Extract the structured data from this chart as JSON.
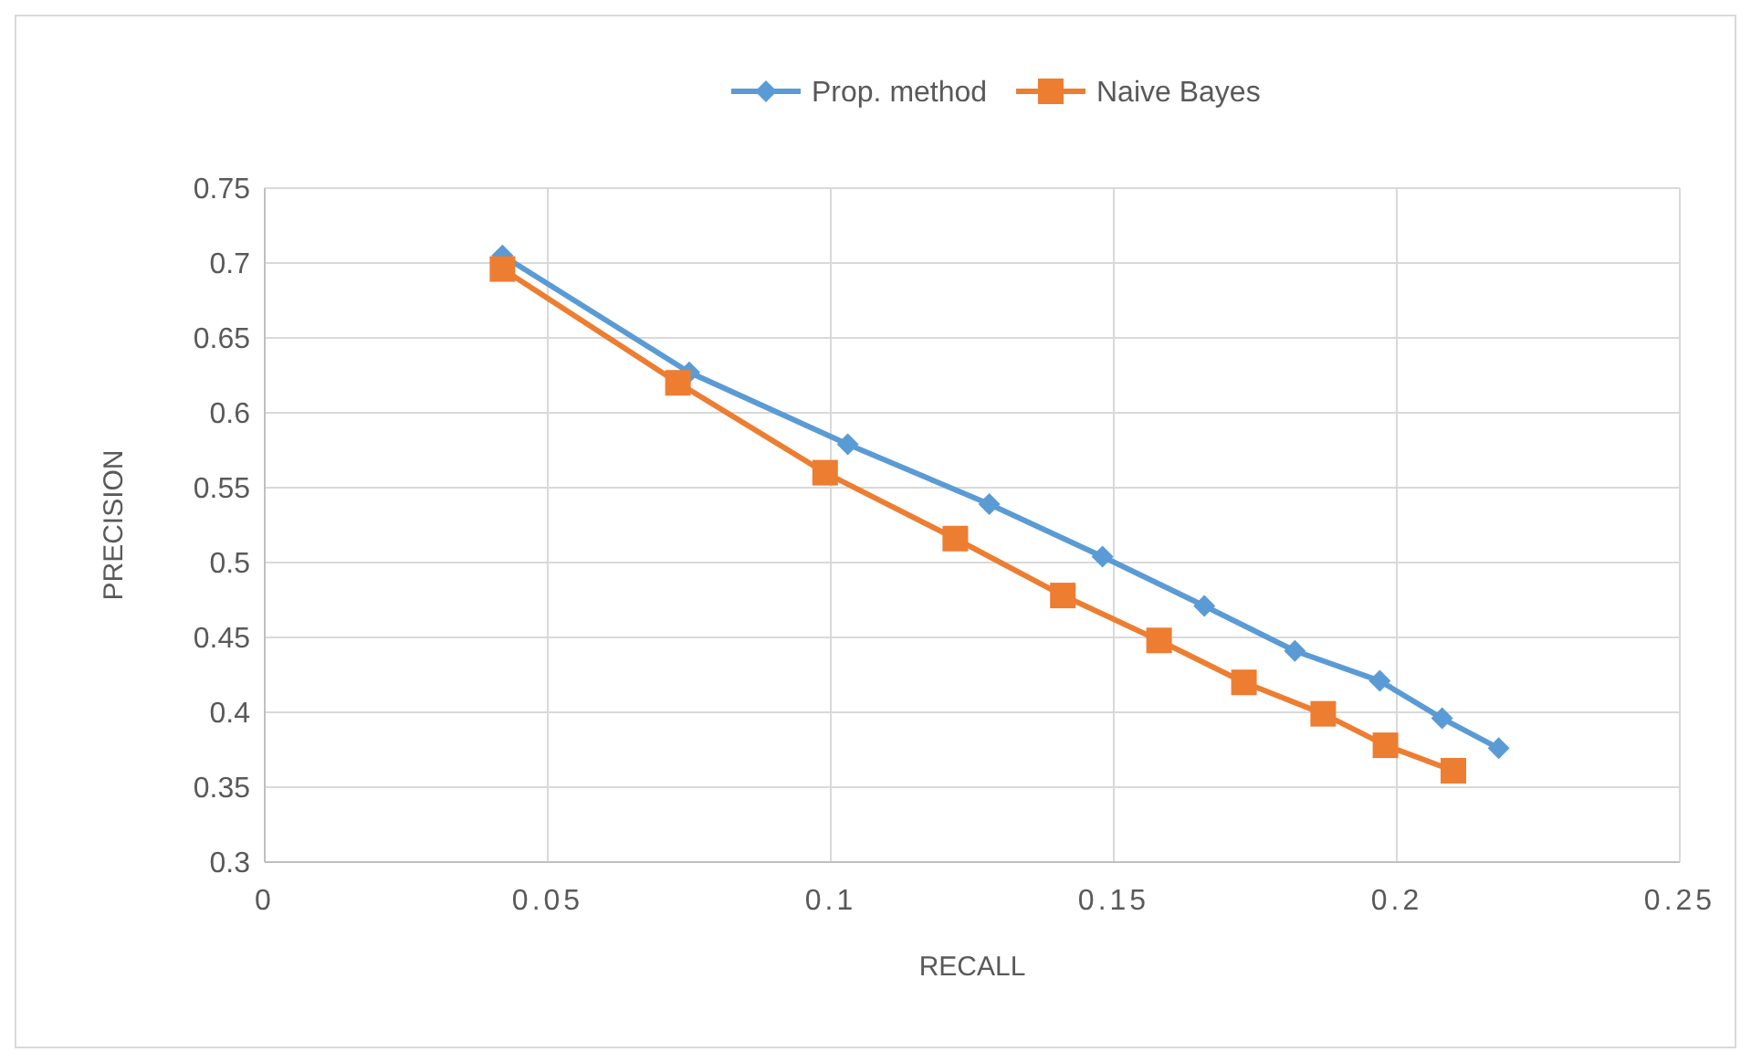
{
  "chart_data": {
    "type": "line",
    "xlabel": "RECALL",
    "ylabel": "PRECISION",
    "xlim": [
      0,
      0.25
    ],
    "xticks": [
      0,
      {
        "value": 0.05,
        "label": "0.05"
      },
      {
        "value": 0.1,
        "label": "0.1"
      },
      {
        "value": 0.15,
        "label": "0.15"
      },
      {
        "value": 0.2,
        "label": "0.2"
      },
      {
        "value": 0.25,
        "label": "0.25"
      }
    ],
    "ylim": [
      0.3,
      0.75
    ],
    "yticks": [
      0.3,
      0.35,
      0.4,
      0.45,
      0.5,
      0.55,
      0.6,
      0.65,
      0.7,
      0.75
    ],
    "grid": true,
    "legend": "top",
    "line_style": "solid",
    "series": [
      {
        "name": "Prop. method",
        "color": "#5b9bd5",
        "marker": "diamond",
        "x": [
          0.042,
          0.075,
          0.103,
          0.128,
          0.148,
          0.166,
          0.182,
          0.197,
          0.208,
          0.218
        ],
        "values": [
          0.705,
          0.627,
          0.579,
          0.539,
          0.504,
          0.471,
          0.441,
          0.421,
          0.396,
          0.376
        ]
      },
      {
        "name": "Naive Bayes",
        "color": "#ed7d31",
        "marker": "square",
        "x": [
          0.042,
          0.073,
          0.099,
          0.122,
          0.141,
          0.158,
          0.173,
          0.187,
          0.198,
          0.21
        ],
        "values": [
          0.696,
          0.62,
          0.56,
          0.516,
          0.478,
          0.448,
          0.42,
          0.399,
          0.378,
          0.361
        ]
      }
    ]
  }
}
